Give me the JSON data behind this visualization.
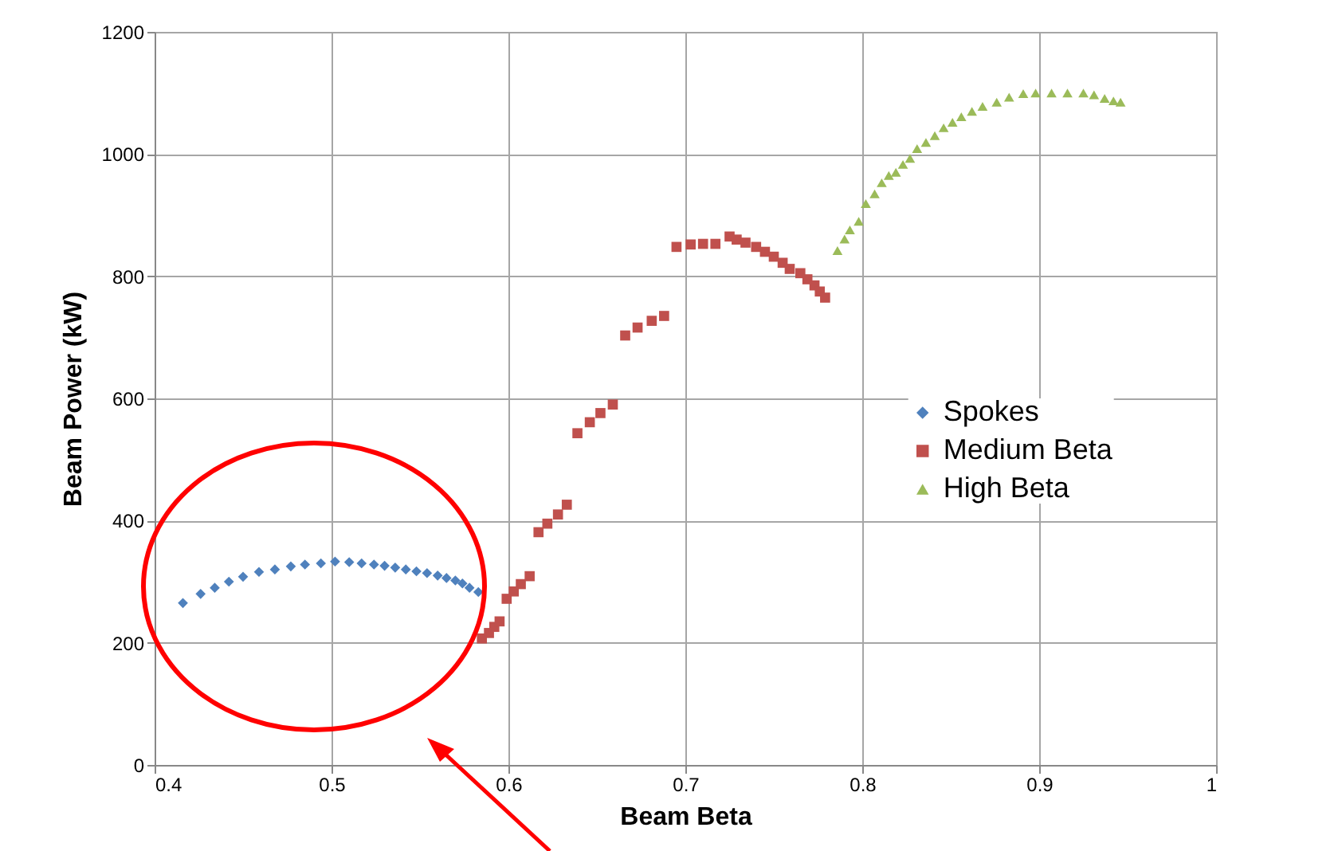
{
  "chart_data": {
    "type": "scatter",
    "xlabel": "Beam Beta",
    "ylabel": "Beam Power (kW)",
    "xlim": [
      0.4,
      1
    ],
    "xticks": [
      0.4,
      0.5,
      0.6,
      0.7,
      0.8,
      0.9,
      1
    ],
    "ylim": [
      0,
      1200
    ],
    "yticks": [
      0,
      200,
      400,
      600,
      800,
      1000,
      1200
    ],
    "grid": true,
    "legend": "right",
    "series": [
      {
        "name": "Spokes",
        "color": "#4f81bd",
        "marker": "diamond",
        "x": [
          0.416,
          0.426,
          0.434,
          0.442,
          0.45,
          0.459,
          0.468,
          0.477,
          0.485,
          0.494,
          0.502,
          0.51,
          0.517,
          0.524,
          0.53,
          0.536,
          0.542,
          0.548,
          0.554,
          0.56,
          0.565,
          0.57,
          0.574,
          0.578,
          0.583
        ],
        "values": [
          265,
          280,
          290,
          300,
          308,
          316,
          320,
          325,
          328,
          330,
          333,
          332,
          330,
          328,
          326,
          323,
          320,
          317,
          314,
          310,
          306,
          302,
          297,
          290,
          283
        ]
      },
      {
        "name": "Medium Beta",
        "color": "#c0504d",
        "marker": "square",
        "x": [
          0.585,
          0.589,
          0.592,
          0.595,
          0.599,
          0.603,
          0.607,
          0.612,
          0.617,
          0.622,
          0.628,
          0.633,
          0.639,
          0.646,
          0.652,
          0.659,
          0.666,
          0.673,
          0.681,
          0.688,
          0.695,
          0.703,
          0.71,
          0.717,
          0.725,
          0.729,
          0.734,
          0.74,
          0.745,
          0.75,
          0.755,
          0.759,
          0.765,
          0.769,
          0.773,
          0.776,
          0.779
        ],
        "values": [
          207,
          216,
          226,
          235,
          272,
          284,
          296,
          309,
          381,
          395,
          410,
          426,
          543,
          561,
          576,
          590,
          703,
          716,
          727,
          735,
          848,
          852,
          853,
          853,
          865,
          860,
          855,
          848,
          840,
          832,
          822,
          812,
          805,
          795,
          785,
          775,
          765
        ]
      },
      {
        "name": "High Beta",
        "color": "#9bbb59",
        "marker": "triangle",
        "x": [
          0.786,
          0.79,
          0.793,
          0.798,
          0.802,
          0.807,
          0.811,
          0.815,
          0.819,
          0.823,
          0.827,
          0.831,
          0.836,
          0.841,
          0.846,
          0.851,
          0.856,
          0.862,
          0.868,
          0.876,
          0.883,
          0.891,
          0.898,
          0.907,
          0.916,
          0.925,
          0.931,
          0.937,
          0.942,
          0.946
        ],
        "values": [
          842,
          861,
          876,
          890,
          919,
          935,
          953,
          965,
          970,
          983,
          993,
          1009,
          1019,
          1030,
          1043,
          1052,
          1061,
          1070,
          1078,
          1085,
          1093,
          1099,
          1100,
          1100,
          1100,
          1100,
          1097,
          1091,
          1087,
          1085
        ]
      }
    ]
  }
}
